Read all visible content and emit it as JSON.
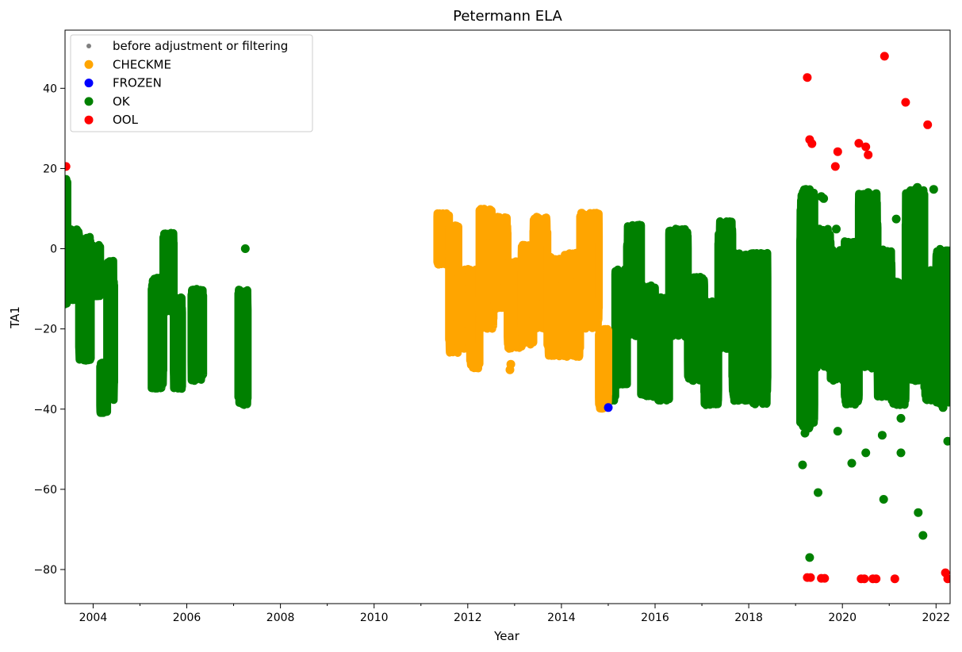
{
  "chart_data": {
    "type": "scatter",
    "title": "Petermann ELA",
    "xlabel": "Year",
    "ylabel": "TA1",
    "xlim": [
      2003.4,
      2022.3
    ],
    "ylim": [
      -88.5,
      54.5
    ],
    "x_ticks": [
      2004,
      2006,
      2008,
      2010,
      2012,
      2014,
      2016,
      2018,
      2020,
      2022
    ],
    "y_ticks": [
      -80,
      -60,
      -40,
      -20,
      0,
      20,
      40
    ],
    "grid": false,
    "legend_position": "top-left",
    "legend": [
      {
        "label": "before adjustment or filtering",
        "color": "#808080",
        "marker": "small"
      },
      {
        "label": "CHECKME",
        "color": "#ffa500",
        "marker": "large"
      },
      {
        "label": "FROZEN",
        "color": "#0000ff",
        "marker": "large"
      },
      {
        "label": "OK",
        "color": "#008000",
        "marker": "large"
      },
      {
        "label": "OOL",
        "color": "#ff0000",
        "marker": "large"
      }
    ],
    "series": [
      {
        "name": "OK",
        "color": "#008000",
        "bands": [
          {
            "x": [
              2003.4,
              2003.45
            ],
            "y": [
              -14,
              17
            ]
          },
          {
            "x": [
              2003.45,
              2003.7
            ],
            "y": [
              -13,
              5
            ]
          },
          {
            "x": [
              2003.7,
              2003.95
            ],
            "y": [
              -28,
              3
            ]
          },
          {
            "x": [
              2003.95,
              2004.15
            ],
            "y": [
              -12,
              1
            ]
          },
          {
            "x": [
              2004.15,
              2004.3
            ],
            "y": [
              -41,
              -28
            ]
          },
          {
            "x": [
              2004.3,
              2004.45
            ],
            "y": [
              -38,
              -3
            ]
          },
          {
            "x": [
              2005.25,
              2005.5
            ],
            "y": [
              -35,
              -7
            ]
          },
          {
            "x": [
              2005.5,
              2005.72
            ],
            "y": [
              -16,
              4
            ]
          },
          {
            "x": [
              2005.72,
              2005.9
            ],
            "y": [
              -35,
              -12
            ]
          },
          {
            "x": [
              2006.1,
              2006.35
            ],
            "y": [
              -33,
              -10
            ]
          },
          {
            "x": [
              2007.1,
              2007.3
            ],
            "y": [
              -39,
              -10
            ]
          },
          {
            "x": [
              2014.95,
              2015.15
            ],
            "y": [
              -38,
              -22
            ]
          },
          {
            "x": [
              2015.15,
              2015.4
            ],
            "y": [
              -34,
              -5
            ]
          },
          {
            "x": [
              2015.4,
              2015.7
            ],
            "y": [
              -22,
              6
            ]
          },
          {
            "x": [
              2015.7,
              2016.0
            ],
            "y": [
              -37,
              -9
            ]
          },
          {
            "x": [
              2016.0,
              2016.3
            ],
            "y": [
              -38,
              -12
            ]
          },
          {
            "x": [
              2016.3,
              2016.7
            ],
            "y": [
              -22,
              5
            ]
          },
          {
            "x": [
              2016.7,
              2017.05
            ],
            "y": [
              -33,
              -7
            ]
          },
          {
            "x": [
              2017.05,
              2017.35
            ],
            "y": [
              -39,
              -13
            ]
          },
          {
            "x": [
              2017.35,
              2017.65
            ],
            "y": [
              -25,
              7
            ]
          },
          {
            "x": [
              2017.65,
              2018.05
            ],
            "y": [
              -38,
              -1
            ]
          },
          {
            "x": [
              2018.05,
              2018.4
            ],
            "y": [
              -39,
              -1
            ]
          },
          {
            "x": [
              2019.1,
              2019.4
            ],
            "y": [
              -45,
              15
            ]
          },
          {
            "x": [
              2019.4,
              2019.75
            ],
            "y": [
              -30,
              5
            ]
          },
          {
            "x": [
              2019.75,
              2020.05
            ],
            "y": [
              -33,
              0
            ]
          },
          {
            "x": [
              2020.05,
              2020.35
            ],
            "y": [
              -39,
              2
            ]
          },
          {
            "x": [
              2020.35,
              2020.75
            ],
            "y": [
              -30,
              14
            ]
          },
          {
            "x": [
              2020.75,
              2021.05
            ],
            "y": [
              -37,
              0
            ]
          },
          {
            "x": [
              2021.05,
              2021.35
            ],
            "y": [
              -39,
              -8
            ]
          },
          {
            "x": [
              2021.35,
              2021.75
            ],
            "y": [
              -33,
              15
            ]
          },
          {
            "x": [
              2021.75,
              2022.0
            ],
            "y": [
              -38,
              -5
            ]
          },
          {
            "x": [
              2022.0,
              2022.3
            ],
            "y": [
              -39,
              0
            ]
          }
        ],
        "points": [
          [
            2003.42,
            17.3
          ],
          [
            2003.43,
            14.3
          ],
          [
            2003.44,
            12.3
          ],
          [
            2007.25,
            0
          ],
          [
            2015.0,
            -24
          ],
          [
            2015.0,
            -37
          ],
          [
            2019.15,
            -53.9
          ],
          [
            2019.2,
            -46
          ],
          [
            2019.25,
            -41
          ],
          [
            2019.22,
            14.8
          ],
          [
            2019.3,
            -77
          ],
          [
            2019.48,
            -60.8
          ],
          [
            2019.55,
            13
          ],
          [
            2019.6,
            12.5
          ],
          [
            2019.87,
            4.9
          ],
          [
            2019.9,
            -45.5
          ],
          [
            2020.2,
            -53.5
          ],
          [
            2020.38,
            7.7
          ],
          [
            2020.5,
            -50.9
          ],
          [
            2020.55,
            14
          ],
          [
            2020.72,
            7.6
          ],
          [
            2020.85,
            -46.5
          ],
          [
            2020.88,
            -62.5
          ],
          [
            2021.15,
            7.4
          ],
          [
            2021.25,
            -42.3
          ],
          [
            2021.25,
            -50.9
          ],
          [
            2021.45,
            14.3
          ],
          [
            2021.6,
            15.3
          ],
          [
            2021.6,
            -25.8
          ],
          [
            2021.62,
            -65.8
          ],
          [
            2021.7,
            6.4
          ],
          [
            2021.72,
            -71.5
          ],
          [
            2021.95,
            14.8
          ],
          [
            2022.15,
            -39.6
          ],
          [
            2022.25,
            -0.5
          ],
          [
            2022.25,
            -8.3
          ],
          [
            2022.25,
            -48
          ]
        ]
      },
      {
        "name": "CHECKME",
        "color": "#ffa500",
        "bands": [
          {
            "x": [
              2011.35,
              2011.6
            ],
            "y": [
              -4,
              9
            ]
          },
          {
            "x": [
              2011.6,
              2011.8
            ],
            "y": [
              -26,
              6
            ]
          },
          {
            "x": [
              2011.8,
              2012.05
            ],
            "y": [
              -25,
              -5
            ]
          },
          {
            "x": [
              2012.05,
              2012.25
            ],
            "y": [
              -30,
              -5
            ]
          },
          {
            "x": [
              2012.25,
              2012.55
            ],
            "y": [
              -20,
              10
            ]
          },
          {
            "x": [
              2012.55,
              2012.85
            ],
            "y": [
              -15,
              8
            ]
          },
          {
            "x": [
              2012.85,
              2013.15
            ],
            "y": [
              -25,
              -3
            ]
          },
          {
            "x": [
              2013.15,
              2013.4
            ],
            "y": [
              -24,
              1
            ]
          },
          {
            "x": [
              2013.4,
              2013.7
            ],
            "y": [
              -20,
              8
            ]
          },
          {
            "x": [
              2013.7,
              2014.05
            ],
            "y": [
              -27,
              -2
            ]
          },
          {
            "x": [
              2014.05,
              2014.4
            ],
            "y": [
              -27,
              -1
            ]
          },
          {
            "x": [
              2014.4,
              2014.8
            ],
            "y": [
              -20,
              9
            ]
          },
          {
            "x": [
              2014.8,
              2015.0
            ],
            "y": [
              -40,
              -20
            ]
          }
        ],
        "points": [
          [
            2012.9,
            -30.2
          ],
          [
            2012.92,
            -28.8
          ]
        ]
      },
      {
        "name": "FROZEN",
        "color": "#0000ff",
        "bands": [],
        "points": [
          [
            2015.0,
            -39.6
          ]
        ]
      },
      {
        "name": "OOL",
        "color": "#ff0000",
        "bands": [],
        "points": [
          [
            2003.42,
            20.5
          ],
          [
            2019.25,
            42.7
          ],
          [
            2019.3,
            27.2
          ],
          [
            2019.35,
            26.2
          ],
          [
            2019.85,
            20.5
          ],
          [
            2019.9,
            24.2
          ],
          [
            2020.35,
            26.3
          ],
          [
            2020.5,
            25.4
          ],
          [
            2020.55,
            23.4
          ],
          [
            2020.9,
            48
          ],
          [
            2021.35,
            36.5
          ],
          [
            2021.82,
            30.9
          ],
          [
            2019.25,
            -82
          ],
          [
            2019.32,
            -82
          ],
          [
            2019.55,
            -82.2
          ],
          [
            2019.62,
            -82.2
          ],
          [
            2020.4,
            -82.3
          ],
          [
            2020.47,
            -82.3
          ],
          [
            2020.65,
            -82.3
          ],
          [
            2020.72,
            -82.3
          ],
          [
            2021.12,
            -82.3
          ],
          [
            2022.2,
            -80.8
          ],
          [
            2022.25,
            -82.3
          ]
        ]
      }
    ]
  }
}
